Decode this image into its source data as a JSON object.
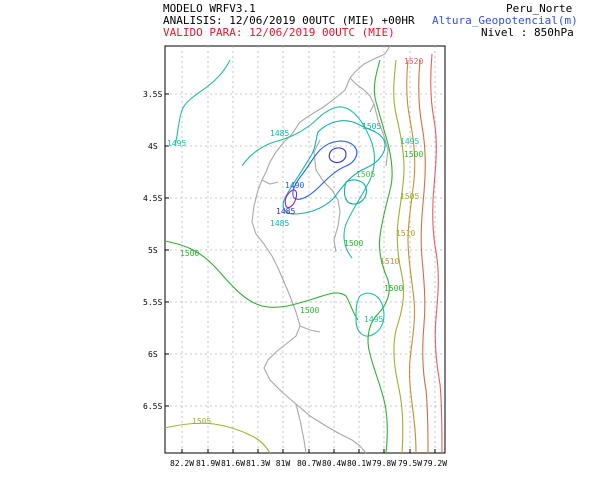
{
  "header": {
    "line1": "MODELO WRFV3.1",
    "line2": "ANALISIS: 12/06/2019 00UTC (MIE) +00HR",
    "line3": "VALIDO PARA: 12/06/2019 00UTC (MIE)",
    "region": "Peru_Norte",
    "variable": "Altura_Geopotencial(m)",
    "level": "Nivel : 850hPa"
  },
  "colors": {
    "valid_line": "#e8142c",
    "variable": "#3050e8",
    "grid": "#b0b0b0",
    "coast": "#a0a0a0"
  },
  "axes": {
    "lat_labels": [
      "3.5S",
      "4S",
      "4.5S",
      "5S",
      "5.5S",
      "6S",
      "6.5S"
    ],
    "lon_labels": [
      "82.2W",
      "81.9W",
      "81.6W",
      "81.3W",
      "81W",
      "80.7W",
      "80.4W",
      "80.1W",
      "79.8W",
      "79.5W",
      "79.2W"
    ]
  },
  "contour_labels": [
    {
      "text": "1520",
      "color": "#e06060"
    },
    {
      "text": "1495",
      "color": "#20c0a0"
    },
    {
      "text": "1485",
      "color": "#10b0b0"
    },
    {
      "text": "1505",
      "color": "#10b0b0"
    },
    {
      "text": "1495",
      "color": "#20c0a0"
    },
    {
      "text": "1500",
      "color": "#30b030"
    },
    {
      "text": "1490",
      "color": "#2060ff"
    },
    {
      "text": "1505",
      "color": "#50c050"
    },
    {
      "text": "1485",
      "color": "#3030d0"
    },
    {
      "text": "1485",
      "color": "#10b0b0"
    },
    {
      "text": "1505",
      "color": "#a0b030"
    },
    {
      "text": "1500",
      "color": "#30b030"
    },
    {
      "text": "1510",
      "color": "#b0a030"
    },
    {
      "text": "1500",
      "color": "#30b030"
    },
    {
      "text": "1510",
      "color": "#c09030"
    },
    {
      "text": "1500",
      "color": "#30b030"
    },
    {
      "text": "1500",
      "color": "#30b030"
    },
    {
      "text": "1495",
      "color": "#20c0a0"
    },
    {
      "text": "1505",
      "color": "#a0b030"
    }
  ]
}
